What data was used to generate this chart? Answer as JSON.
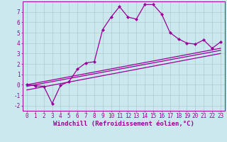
{
  "xlabel": "Windchill (Refroidissement éolien,°C)",
  "xlim": [
    -0.5,
    23.5
  ],
  "ylim": [
    -2.5,
    8.0
  ],
  "xticks": [
    0,
    1,
    2,
    3,
    4,
    5,
    6,
    7,
    8,
    9,
    10,
    11,
    12,
    13,
    14,
    15,
    16,
    17,
    18,
    19,
    20,
    21,
    22,
    23
  ],
  "yticks": [
    -2,
    -1,
    0,
    1,
    2,
    3,
    4,
    5,
    6,
    7
  ],
  "bg_color": "#cce8ef",
  "line_color": "#990099",
  "grid_color": "#aacccc",
  "line1_x": [
    0,
    1,
    2,
    3,
    4,
    5,
    6,
    7,
    8,
    9,
    10,
    11,
    12,
    13,
    14,
    15,
    16,
    17,
    18,
    19,
    20,
    21,
    22,
    23
  ],
  "line1_y": [
    0,
    -0.1,
    -0.15,
    -1.8,
    -0.05,
    0.3,
    1.5,
    2.1,
    2.2,
    5.3,
    6.5,
    7.5,
    6.5,
    6.3,
    7.7,
    7.7,
    6.8,
    5.0,
    4.4,
    4.0,
    3.9,
    4.3,
    3.5,
    4.1
  ],
  "trend1_x": [
    0,
    23
  ],
  "trend1_y": [
    0.0,
    3.5
  ],
  "trend2_x": [
    0,
    23
  ],
  "trend2_y": [
    -0.15,
    3.3
  ],
  "trend3_x": [
    0,
    23
  ],
  "trend3_y": [
    -0.5,
    3.0
  ],
  "font_size": 6.5,
  "tick_font_size": 5.5,
  "xlabel_fontsize": 6.5
}
